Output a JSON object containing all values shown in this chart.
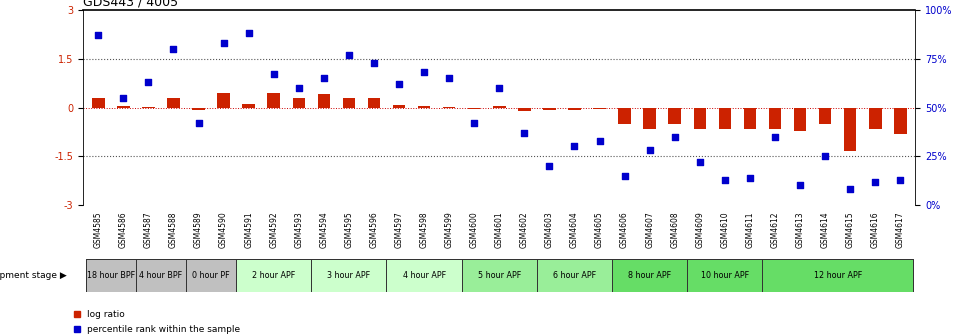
{
  "title": "GDS443 / 4005",
  "samples": [
    "GSM4585",
    "GSM4586",
    "GSM4587",
    "GSM4588",
    "GSM4589",
    "GSM4590",
    "GSM4591",
    "GSM4592",
    "GSM4593",
    "GSM4594",
    "GSM4595",
    "GSM4596",
    "GSM4597",
    "GSM4598",
    "GSM4599",
    "GSM4600",
    "GSM4601",
    "GSM4602",
    "GSM4603",
    "GSM4604",
    "GSM4605",
    "GSM4606",
    "GSM4607",
    "GSM4608",
    "GSM4609",
    "GSM4610",
    "GSM4611",
    "GSM4612",
    "GSM4613",
    "GSM4614",
    "GSM4615",
    "GSM4616",
    "GSM4617"
  ],
  "log_ratio": [
    0.3,
    0.05,
    0.02,
    0.3,
    -0.08,
    0.45,
    0.12,
    0.45,
    0.3,
    0.42,
    0.3,
    0.28,
    0.08,
    0.05,
    0.03,
    -0.04,
    0.04,
    -0.12,
    -0.08,
    -0.08,
    -0.04,
    -0.5,
    -0.65,
    -0.5,
    -0.65,
    -0.65,
    -0.65,
    -0.65,
    -0.72,
    -0.5,
    -1.35,
    -0.65,
    -0.82
  ],
  "percentile": [
    87,
    55,
    63,
    80,
    42,
    83,
    88,
    67,
    60,
    65,
    77,
    73,
    62,
    68,
    65,
    42,
    60,
    37,
    20,
    30,
    33,
    15,
    28,
    35,
    22,
    13,
    14,
    35,
    10,
    25,
    8,
    12,
    13
  ],
  "stages": [
    {
      "label": "18 hour BPF",
      "start": 0,
      "end": 2,
      "color": "#c0c0c0"
    },
    {
      "label": "4 hour BPF",
      "start": 2,
      "end": 4,
      "color": "#c0c0c0"
    },
    {
      "label": "0 hour PF",
      "start": 4,
      "end": 6,
      "color": "#c0c0c0"
    },
    {
      "label": "2 hour APF",
      "start": 6,
      "end": 9,
      "color": "#ccffcc"
    },
    {
      "label": "3 hour APF",
      "start": 9,
      "end": 12,
      "color": "#ccffcc"
    },
    {
      "label": "4 hour APF",
      "start": 12,
      "end": 15,
      "color": "#ccffcc"
    },
    {
      "label": "5 hour APF",
      "start": 15,
      "end": 18,
      "color": "#99ee99"
    },
    {
      "label": "6 hour APF",
      "start": 18,
      "end": 21,
      "color": "#99ee99"
    },
    {
      "label": "8 hour APF",
      "start": 21,
      "end": 24,
      "color": "#66dd66"
    },
    {
      "label": "10 hour APF",
      "start": 24,
      "end": 27,
      "color": "#66dd66"
    },
    {
      "label": "12 hour APF",
      "start": 27,
      "end": 33,
      "color": "#66dd66"
    }
  ],
  "bar_color": "#cc2200",
  "dot_color": "#0000cc",
  "ylim": [
    -3,
    3
  ],
  "yticks_left": [
    -3,
    -1.5,
    0,
    1.5,
    3
  ],
  "ytick_labels_left": [
    "-3",
    "-1.5",
    "0",
    "1.5",
    "3"
  ],
  "right_yticks_pct": [
    0,
    25,
    50,
    75,
    100
  ],
  "dotted_color": "#555555",
  "hline_color": "#cc0000",
  "legend_items": [
    {
      "label": "log ratio",
      "color": "#cc2200"
    },
    {
      "label": "percentile rank within the sample",
      "color": "#0000cc"
    }
  ]
}
